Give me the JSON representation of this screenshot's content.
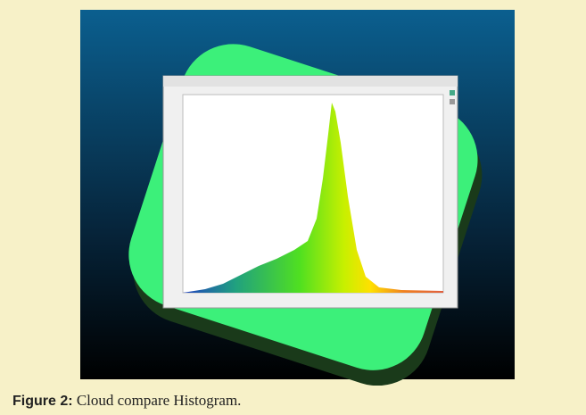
{
  "figure": {
    "label": "Figure 2:",
    "caption": "Cloud compare Histogram."
  }
}
